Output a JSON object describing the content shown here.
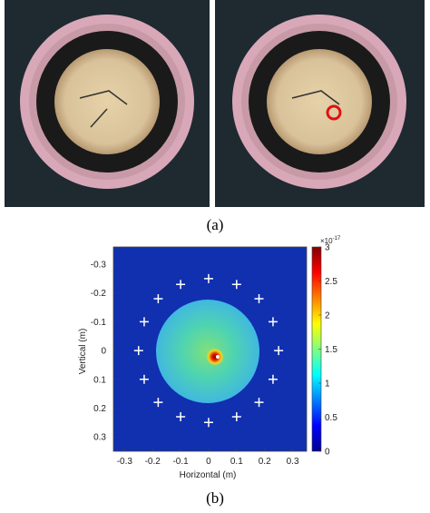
{
  "figure": {
    "panel_a_label": "(a)",
    "panel_b_label": "(b)"
  },
  "chart_data": {
    "type": "heatmap",
    "xlabel": "Horizontal (m)",
    "ylabel": "Vertical (m)",
    "xlim": [
      -0.34,
      0.35
    ],
    "ylim": [
      -0.36,
      0.35
    ],
    "y_inverted": true,
    "xticks": [
      -0.3,
      -0.2,
      -0.1,
      0,
      0.1,
      0.2,
      0.3
    ],
    "yticks": [
      -0.3,
      -0.2,
      -0.1,
      0,
      0.1,
      0.2,
      0.3
    ],
    "colorbar": {
      "lim": [
        0,
        3
      ],
      "ticks": [
        0,
        0.5,
        1,
        1.5,
        2,
        2.5,
        3
      ],
      "base": "×10",
      "exponent": "-17"
    },
    "markers": {
      "color": "#ffffff",
      "x": [
        0.25,
        0.23,
        0.18,
        0.1,
        0,
        -0.1,
        -0.18,
        -0.23,
        -0.25,
        -0.23,
        -0.18,
        -0.1,
        0,
        0.1,
        0.18,
        0.23
      ],
      "y": [
        0,
        0.1,
        0.18,
        0.23,
        0.25,
        0.23,
        0.18,
        0.1,
        0,
        -0.1,
        -0.18,
        -0.23,
        -0.25,
        -0.23,
        -0.18,
        -0.1
      ]
    }
  }
}
